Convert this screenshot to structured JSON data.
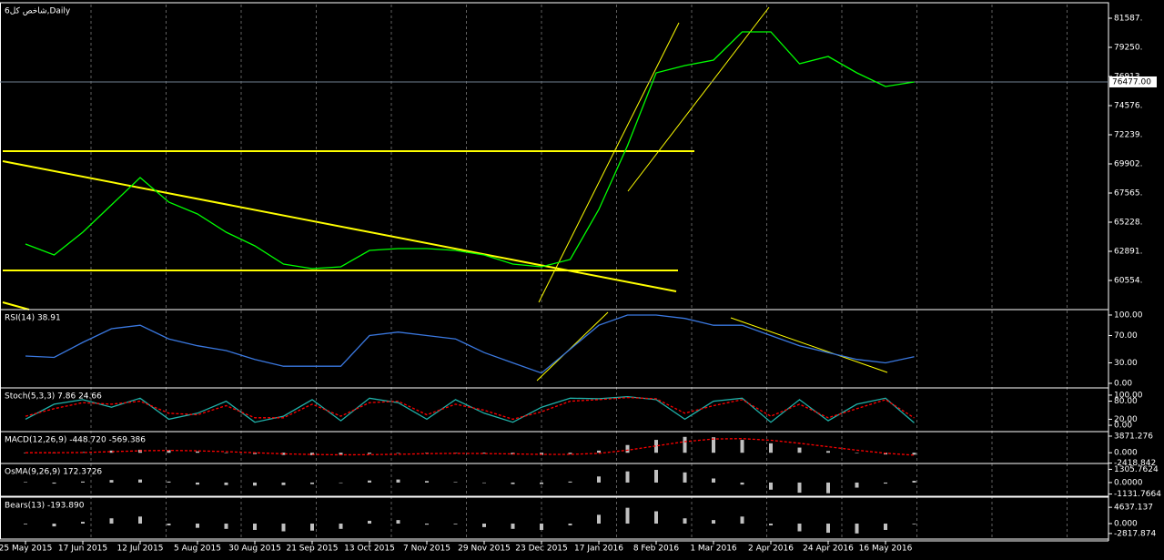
{
  "chart_data": [
    {
      "type": "line",
      "title": "شاخص کل6,Daily",
      "categories": [
        "25 May 2015",
        null,
        "17 Jun 2015",
        null,
        "12 Jul 2015",
        null,
        "5 Aug 2015",
        null,
        "30 Aug 2015",
        null,
        "21 Sep 2015",
        null,
        "13 Oct 2015",
        null,
        "7 Nov 2015",
        null,
        "29 Nov 2015",
        null,
        "23 Dec 2015",
        null,
        "17 Jan 2016",
        null,
        "8 Feb 2016",
        null,
        "1 Mar 2016",
        null,
        "2 Apr 2016",
        null,
        "24 Apr 2016",
        null,
        "16 May 2016",
        null
      ],
      "ylim": [
        58217,
        82683
      ],
      "yticks": [
        {
          "value": 81587,
          "label": "81587."
        },
        {
          "value": 79250,
          "label": "79250."
        },
        {
          "value": 76913,
          "label": "76913."
        },
        {
          "value": 74576,
          "label": "74576."
        },
        {
          "value": 72239,
          "label": "72239."
        },
        {
          "value": 69902,
          "label": "69902."
        },
        {
          "value": 67565,
          "label": "67565."
        },
        {
          "value": 65228,
          "label": "65228."
        },
        {
          "value": 62891,
          "label": "62891."
        },
        {
          "value": 60554,
          "label": "60554."
        }
      ],
      "current_price": {
        "value": 76477,
        "label": "76477.00"
      },
      "series": [
        {
          "type": "line",
          "color": "#00ff00",
          "values": [
            63476,
            62600,
            64425,
            66616,
            68806,
            66835,
            65886,
            64425,
            63330,
            61869,
            61504,
            61650,
            62964,
            63110,
            63110,
            62964,
            62600,
            61869,
            61650,
            62235,
            66251,
            71363,
            77205,
            77790,
            78228,
            80492,
            80492,
            77935,
            78520,
            77205,
            76110,
            76477
          ]
        }
      ]
    },
    {
      "type": "line",
      "title": "RSI(14) 38.91",
      "ylim": [
        -6.7,
        105.3
      ],
      "yticks": [
        {
          "value": 100,
          "label": "100.00"
        },
        {
          "value": 70,
          "label": "70.00"
        },
        {
          "value": 30,
          "label": "30.00"
        },
        {
          "value": 0,
          "label": "0.00"
        }
      ],
      "series": [
        {
          "type": "line",
          "color": "#3a78e0",
          "values": [
            40,
            38,
            60,
            80,
            85,
            65,
            55,
            48,
            35,
            25,
            25,
            25,
            70,
            75,
            70,
            65,
            45,
            30,
            15,
            50,
            85,
            100,
            100,
            95,
            85,
            85,
            70,
            55,
            45,
            35,
            30,
            38.91
          ]
        }
      ]
    },
    {
      "type": "line",
      "title": "Stoch(5,3,3) 7.86 24.66",
      "ylim": [
        -21,
        118
      ],
      "yticks": [
        {
          "value": 100,
          "label": "100.00"
        },
        {
          "value": 80,
          "label": "80.00"
        },
        {
          "value": 20,
          "label": "20.00"
        },
        {
          "value": 0,
          "label": "0.00"
        }
      ],
      "series": [
        {
          "type": "line",
          "color": "#20b2aa",
          "values": [
            20,
            70,
            85,
            60,
            90,
            20,
            40,
            80,
            10,
            30,
            85,
            15,
            90,
            75,
            20,
            85,
            40,
            10,
            60,
            90,
            88,
            95,
            85,
            20,
            80,
            90,
            10,
            85,
            15,
            70,
            90,
            7.86
          ]
        },
        {
          "type": "line",
          "color": "#ff0000",
          "dash": true,
          "values": [
            30,
            55,
            75,
            70,
            80,
            40,
            35,
            65,
            25,
            25,
            70,
            30,
            75,
            80,
            35,
            70,
            50,
            20,
            45,
            80,
            85,
            92,
            88,
            40,
            65,
            85,
            30,
            70,
            25,
            55,
            85,
            24.66
          ]
        }
      ]
    },
    {
      "type": "bar",
      "title": "MACD(12,26,9) -448.720 -569.386",
      "ylim": [
        -2500,
        4500
      ],
      "yticks": [
        {
          "value": 3871.276,
          "label": "3871.276"
        },
        {
          "value": 0,
          "label": "0.000"
        },
        {
          "value": -2418.842,
          "label": "-2418.842"
        }
      ],
      "series": [
        {
          "type": "bar",
          "color": "#c0c0c0",
          "values": [
            50,
            -100,
            150,
            500,
            700,
            600,
            300,
            0,
            -300,
            -500,
            -550,
            -500,
            -250,
            -100,
            -50,
            -100,
            -200,
            -400,
            -500,
            -300,
            500,
            1800,
            3000,
            3700,
            3600,
            3000,
            2200,
            1200,
            400,
            -100,
            -400,
            -448.72
          ]
        },
        {
          "type": "line",
          "color": "#ff0000",
          "dash": true,
          "values": [
            0,
            0,
            50,
            250,
            450,
            550,
            450,
            250,
            0,
            -250,
            -400,
            -480,
            -450,
            -350,
            -200,
            -150,
            -180,
            -280,
            -380,
            -380,
            -150,
            600,
            1600,
            2600,
            3200,
            3300,
            2900,
            2200,
            1400,
            600,
            -100,
            -569.386
          ]
        }
      ]
    },
    {
      "type": "bar",
      "title": "OsMA(9,26,9) 172.3726",
      "ylim": [
        -1350,
        1700
      ],
      "yticks": [
        {
          "value": 1305.7624,
          "label": "1305.7624"
        },
        {
          "value": 0,
          "label": "0.0000"
        },
        {
          "value": -1131.7664,
          "label": "-1131.7664"
        }
      ],
      "series": [
        {
          "type": "bar",
          "color": "#c0c0c0",
          "values": [
            50,
            -100,
            100,
            250,
            300,
            100,
            -200,
            -250,
            -300,
            -250,
            -150,
            -50,
            200,
            300,
            150,
            50,
            -50,
            -150,
            -150,
            100,
            600,
            1100,
            1250,
            1000,
            400,
            -200,
            -700,
            -1000,
            -1050,
            -500,
            -100,
            172.3726
          ]
        }
      ]
    },
    {
      "type": "bar",
      "title": "Bears(13) -193.890",
      "ylim": [
        -4400,
        7000
      ],
      "yticks": [
        {
          "value": 4637.137,
          "label": "4637.137"
        },
        {
          "value": 0,
          "label": "0.000"
        },
        {
          "value": -2817.874,
          "label": "-2817.874"
        }
      ],
      "series": [
        {
          "type": "bar",
          "color": "#c0c0c0",
          "values": [
            -200,
            -800,
            500,
            1500,
            2000,
            -500,
            -1200,
            -1500,
            -1800,
            -2200,
            -2000,
            -1500,
            800,
            1000,
            -300,
            -200,
            -1000,
            -1500,
            -1800,
            -500,
            2500,
            4500,
            3500,
            1500,
            1000,
            2000,
            -500,
            -2200,
            -2600,
            -2800,
            -1800,
            -193.89
          ]
        }
      ]
    }
  ]
}
